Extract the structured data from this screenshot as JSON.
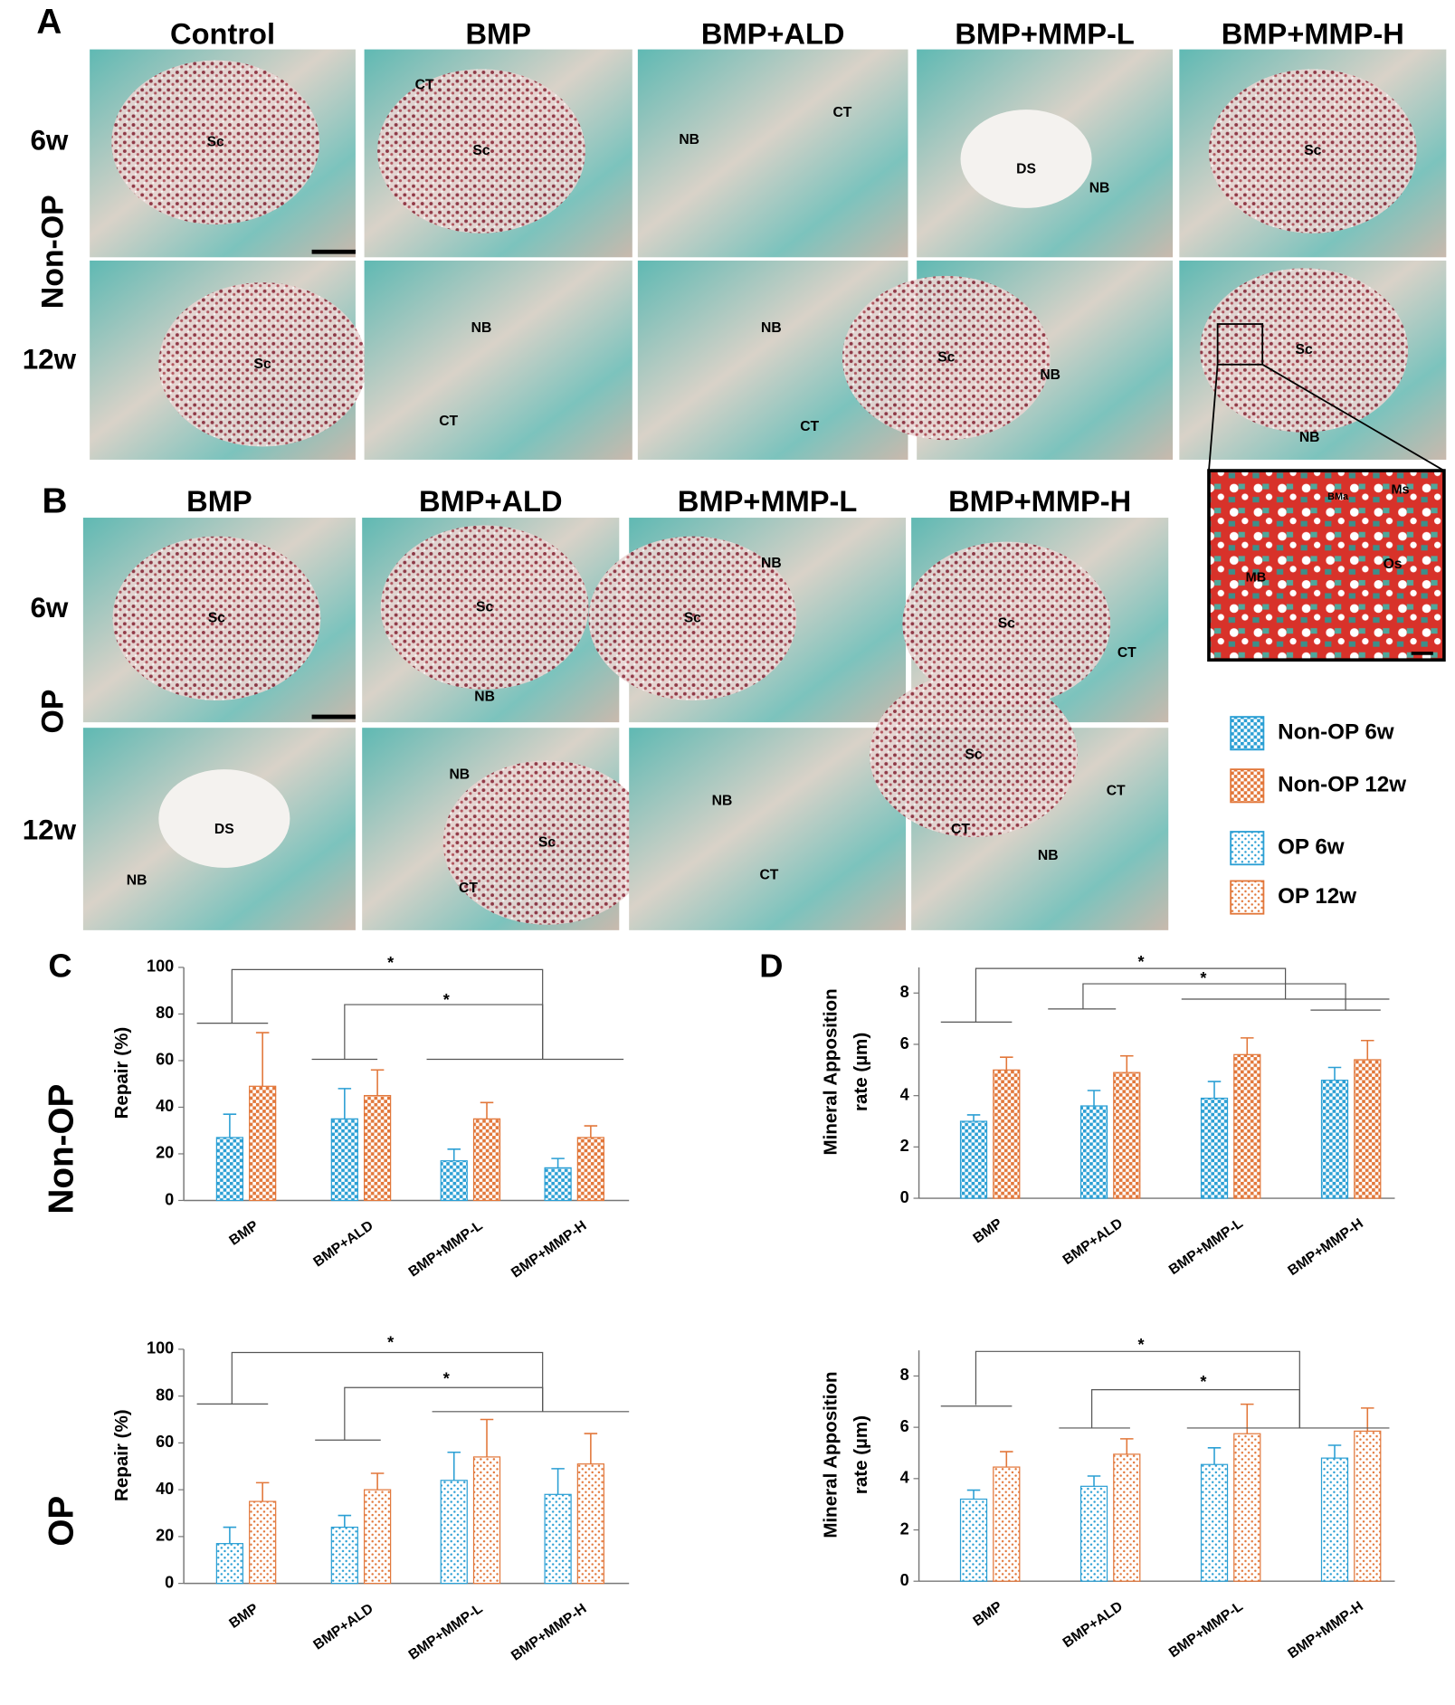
{
  "panels": {
    "A": {
      "label": "A",
      "group": "Non-OP",
      "rows": [
        "6w",
        "12w"
      ],
      "columns": [
        "Control",
        "BMP",
        "BMP+ALD",
        "BMP+MMP-L",
        "BMP+MMP-H"
      ],
      "images": [
        [
          [
            "Sc"
          ],
          [
            "CT",
            "Sc"
          ],
          [
            "NB",
            "CT"
          ],
          [
            "DS",
            "NB"
          ],
          [
            "Sc"
          ]
        ],
        [
          [
            "Sc"
          ],
          [
            "NB",
            "CT"
          ],
          [
            "NB",
            "CT"
          ],
          [
            "Sc",
            "NB"
          ],
          [
            "Sc",
            "NB"
          ]
        ]
      ]
    },
    "B": {
      "label": "B",
      "group": "OP",
      "rows": [
        "6w",
        "12w"
      ],
      "columns": [
        "BMP",
        "BMP+ALD",
        "BMP+MMP-L",
        "BMP+MMP-H"
      ],
      "images": [
        [
          [
            "Sc"
          ],
          [
            "Sc",
            "NB"
          ],
          [
            "Sc",
            "NB"
          ],
          [
            "Sc",
            "CT"
          ]
        ],
        [
          [
            "DS",
            "NB"
          ],
          [
            "NB",
            "Sc",
            "CT"
          ],
          [
            "NB",
            "CT"
          ],
          [
            "Sc",
            "CT",
            "CT",
            "NB"
          ]
        ]
      ]
    }
  },
  "inset": {
    "labels": [
      "Ms",
      "BMa",
      "MB",
      "Os"
    ]
  },
  "chart_data": [
    {
      "type": "bar",
      "panel_label": "C",
      "row_label": "Non-OP",
      "y_label": [
        "Repair (%)"
      ],
      "categories": [
        "BMP",
        "BMP+ALD",
        "BMP+MMP-L",
        "BMP+MMP-H"
      ],
      "ylim": [
        0,
        100
      ],
      "yticks": [
        0,
        20,
        40,
        60,
        80,
        100
      ],
      "annotations": [
        "*",
        "*"
      ],
      "series": [
        {
          "name": "Non-OP 6w",
          "color": "#2b9fd4",
          "fill_pattern": "checker",
          "values": [
            27,
            35,
            17,
            14
          ],
          "errors": [
            10,
            13,
            5,
            4
          ]
        },
        {
          "name": "Non-OP 12w",
          "color": "#e2773a",
          "fill_pattern": "checker",
          "values": [
            49,
            45,
            35,
            27
          ],
          "errors": [
            23,
            11,
            7,
            5
          ]
        }
      ]
    },
    {
      "type": "bar",
      "panel_label": "D",
      "y_label": [
        "Mineral Apposition",
        "rate (µm)"
      ],
      "categories": [
        "BMP",
        "BMP+ALD",
        "BMP+MMP-L",
        "BMP+MMP-H"
      ],
      "ylim": [
        0,
        9
      ],
      "yticks": [
        0,
        2,
        4,
        6,
        8
      ],
      "annotations": [
        "*",
        "*"
      ],
      "series": [
        {
          "color": "#2b9fd4",
          "fill_pattern": "checker",
          "values": [
            3.0,
            3.6,
            3.9,
            4.6
          ],
          "errors": [
            0.25,
            0.6,
            0.65,
            0.5
          ]
        },
        {
          "color": "#e2773a",
          "fill_pattern": "checker",
          "values": [
            5.0,
            4.9,
            5.6,
            5.4
          ],
          "errors": [
            0.5,
            0.65,
            0.65,
            0.75
          ]
        }
      ]
    },
    {
      "type": "bar",
      "row_label": "OP",
      "y_label": [
        "Repair (%)"
      ],
      "categories": [
        "BMP",
        "BMP+ALD",
        "BMP+MMP-L",
        "BMP+MMP-H"
      ],
      "ylim": [
        0,
        100
      ],
      "yticks": [
        0,
        20,
        40,
        60,
        80,
        100
      ],
      "annotations": [
        "*",
        "*"
      ],
      "series": [
        {
          "name": "OP 6w",
          "color": "#2b9fd4",
          "fill_pattern": "dots",
          "values": [
            17,
            24,
            44,
            38
          ],
          "errors": [
            7,
            5,
            12,
            11
          ]
        },
        {
          "name": "OP 12w",
          "color": "#e2773a",
          "fill_pattern": "dots",
          "values": [
            35,
            40,
            54,
            51
          ],
          "errors": [
            8,
            7,
            16,
            13
          ]
        }
      ]
    },
    {
      "type": "bar",
      "y_label": [
        "Mineral Apposition",
        "rate (µm)"
      ],
      "categories": [
        "BMP",
        "BMP+ALD",
        "BMP+MMP-L",
        "BMP+MMP-H"
      ],
      "ylim": [
        0,
        9
      ],
      "yticks": [
        0,
        2,
        4,
        6,
        8
      ],
      "annotations": [
        "*",
        "*"
      ],
      "series": [
        {
          "color": "#2b9fd4",
          "fill_pattern": "dots",
          "values": [
            3.2,
            3.7,
            4.55,
            4.8
          ],
          "errors": [
            0.35,
            0.4,
            0.65,
            0.5
          ]
        },
        {
          "color": "#e2773a",
          "fill_pattern": "dots",
          "values": [
            4.45,
            4.95,
            5.75,
            5.85
          ],
          "errors": [
            0.6,
            0.6,
            1.15,
            0.9
          ]
        }
      ]
    }
  ]
}
